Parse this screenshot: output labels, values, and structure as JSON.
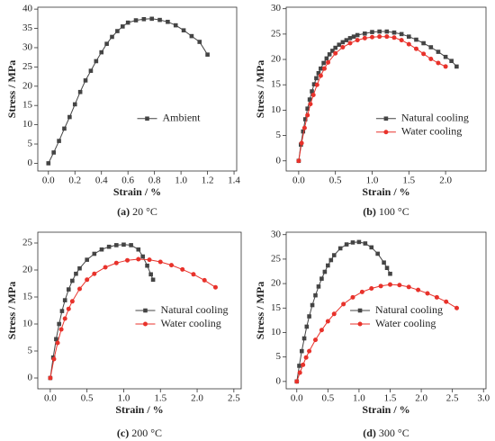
{
  "chart_data": [
    {
      "type": "line",
      "panel": "(a)",
      "subtitle": "20 °C",
      "xlabel": "Strain / %",
      "ylabel": "Stress / MPa",
      "xlim": [
        -0.08,
        1.42
      ],
      "xticks": [
        {
          "value": 0,
          "label": "0.0"
        },
        0.2,
        0.4,
        0.6,
        0.8,
        {
          "value": 1,
          "label": "1.0"
        },
        1.2,
        1.4
      ],
      "ylim": [
        -2,
        40.5
      ],
      "yticks": [
        0,
        5,
        10,
        15,
        20,
        25,
        30,
        35,
        40
      ],
      "legend": "center right",
      "series": [
        {
          "name": "Ambient",
          "color": "#444444",
          "marker": "square",
          "x": [
            0,
            0.04,
            0.08,
            0.12,
            0.16,
            0.2,
            0.24,
            0.28,
            0.32,
            0.36,
            0.4,
            0.44,
            0.48,
            0.52,
            0.56,
            0.6,
            0.66,
            0.72,
            0.78,
            0.84,
            0.9,
            0.96,
            1.02,
            1.08,
            1.14,
            1.2
          ],
          "values": [
            0,
            2.8,
            5.8,
            9,
            12,
            15.3,
            18.5,
            21.5,
            24,
            26.5,
            28.8,
            31,
            32.8,
            34.3,
            35.5,
            36.5,
            37.1,
            37.4,
            37.5,
            37.2,
            36.7,
            35.8,
            34.5,
            33,
            31.5,
            28.2
          ]
        }
      ]
    },
    {
      "type": "line",
      "panel": "(b)",
      "subtitle": "100 °C",
      "xlabel": "Strain / %",
      "ylabel": "Stress / MPa",
      "xlim": [
        -0.17,
        2.55
      ],
      "xticks": [
        {
          "value": 0,
          "label": "0.0"
        },
        0.5,
        {
          "value": 1,
          "label": "1.0"
        },
        1.5,
        {
          "value": 2,
          "label": "2.0"
        }
      ],
      "ylim": [
        -2,
        30.3
      ],
      "yticks": [
        0,
        5,
        10,
        15,
        20,
        25,
        30
      ],
      "legend": "center right",
      "series": [
        {
          "name": "Natural cooling",
          "color": "#444444",
          "marker": "square",
          "x": [
            0,
            0.03,
            0.06,
            0.09,
            0.12,
            0.15,
            0.18,
            0.21,
            0.24,
            0.27,
            0.3,
            0.34,
            0.38,
            0.42,
            0.46,
            0.5,
            0.55,
            0.6,
            0.65,
            0.7,
            0.75,
            0.8,
            0.9,
            1.0,
            1.1,
            1.2,
            1.3,
            1.4,
            1.5,
            1.6,
            1.7,
            1.8,
            1.9,
            2.0,
            2.08,
            2.15
          ],
          "values": [
            0,
            3.2,
            5.8,
            8.2,
            10.3,
            12.1,
            13.7,
            15.1,
            16.3,
            17.3,
            18.2,
            19.3,
            20.2,
            21,
            21.7,
            22.3,
            22.9,
            23.4,
            23.8,
            24.2,
            24.5,
            24.8,
            25.1,
            25.4,
            25.5,
            25.5,
            25.3,
            25,
            24.5,
            23.9,
            23.2,
            22.4,
            21.5,
            20.5,
            19.7,
            18.6
          ]
        },
        {
          "name": "Water cooling",
          "color": "#e8322b",
          "marker": "circle",
          "x": [
            0,
            0.04,
            0.08,
            0.12,
            0.16,
            0.2,
            0.25,
            0.3,
            0.35,
            0.4,
            0.5,
            0.6,
            0.7,
            0.8,
            0.9,
            1.0,
            1.1,
            1.2,
            1.3,
            1.4,
            1.5,
            1.6,
            1.7,
            1.8,
            1.9,
            2.0
          ],
          "values": [
            0,
            3.5,
            6.5,
            9,
            11.2,
            13,
            15,
            16.8,
            18.2,
            19.4,
            21.2,
            22.4,
            23.2,
            23.8,
            24.2,
            24.4,
            24.5,
            24.5,
            24.3,
            23.8,
            23,
            22.1,
            21.1,
            20.1,
            19.3,
            18.6
          ]
        }
      ]
    },
    {
      "type": "line",
      "panel": "(c)",
      "subtitle": "200 °C",
      "xlabel": "Strain / %",
      "ylabel": "Stress / MPa",
      "xlim": [
        -0.17,
        2.6
      ],
      "xticks": [
        {
          "value": 0,
          "label": "0.0"
        },
        0.5,
        {
          "value": 1,
          "label": "1.0"
        },
        1.5,
        {
          "value": 2,
          "label": "2.0"
        },
        2.5
      ],
      "ylim": [
        -2,
        27
      ],
      "yticks": [
        0,
        5,
        10,
        15,
        20,
        25
      ],
      "legend": "lower right",
      "series": [
        {
          "name": "Natural cooling",
          "color": "#444444",
          "marker": "square",
          "x": [
            0,
            0.04,
            0.08,
            0.12,
            0.16,
            0.2,
            0.25,
            0.3,
            0.35,
            0.4,
            0.5,
            0.6,
            0.7,
            0.8,
            0.9,
            1.0,
            1.1,
            1.2,
            1.26,
            1.32,
            1.37,
            1.4
          ],
          "values": [
            0,
            3.8,
            7.2,
            10,
            12.4,
            14.4,
            16.4,
            18,
            19.3,
            20.3,
            21.9,
            23,
            23.8,
            24.3,
            24.6,
            24.7,
            24.6,
            23.8,
            22.5,
            20.8,
            19.2,
            18.2
          ]
        },
        {
          "name": "Water cooling",
          "color": "#e8322b",
          "marker": "circle",
          "x": [
            0,
            0.05,
            0.1,
            0.15,
            0.2,
            0.25,
            0.3,
            0.4,
            0.5,
            0.6,
            0.75,
            0.9,
            1.05,
            1.2,
            1.35,
            1.5,
            1.65,
            1.8,
            1.95,
            2.1,
            2.25
          ],
          "values": [
            0,
            3.5,
            6.5,
            9,
            11,
            12.8,
            14.2,
            16.5,
            18.2,
            19.3,
            20.5,
            21.3,
            21.8,
            22,
            21.9,
            21.5,
            20.9,
            20.1,
            19.2,
            18.1,
            16.8
          ]
        }
      ]
    },
    {
      "type": "line",
      "panel": "(d)",
      "subtitle": "300 °C",
      "xlabel": "Strain / %",
      "ylabel": "Stress / MPa",
      "xlim": [
        -0.17,
        3.04
      ],
      "xticks": [
        {
          "value": 0,
          "label": "0.0"
        },
        0.5,
        {
          "value": 1,
          "label": "1.0"
        },
        1.5,
        {
          "value": 2,
          "label": "2.0"
        },
        2.5,
        {
          "value": 3,
          "label": "3.0"
        }
      ],
      "ylim": [
        -1.5,
        30.5
      ],
      "yticks": [
        0,
        5,
        10,
        15,
        20,
        25,
        30
      ],
      "legend": "lower right",
      "series": [
        {
          "name": "Natural cooling",
          "color": "#444444",
          "marker": "square",
          "x": [
            0,
            0.04,
            0.08,
            0.12,
            0.16,
            0.2,
            0.25,
            0.3,
            0.35,
            0.4,
            0.45,
            0.5,
            0.55,
            0.6,
            0.7,
            0.8,
            0.9,
            1.0,
            1.1,
            1.2,
            1.3,
            1.4,
            1.45,
            1.5
          ],
          "values": [
            0,
            3.2,
            6.2,
            8.8,
            11.2,
            13.3,
            15.6,
            17.6,
            19.4,
            21,
            22.4,
            23.7,
            24.8,
            25.8,
            27.2,
            28,
            28.4,
            28.5,
            28.2,
            27.4,
            26.1,
            24.3,
            23.2,
            22
          ]
        },
        {
          "name": "Water cooling",
          "color": "#e8322b",
          "marker": "circle",
          "x": [
            0,
            0.05,
            0.1,
            0.15,
            0.2,
            0.3,
            0.4,
            0.5,
            0.6,
            0.75,
            0.9,
            1.05,
            1.2,
            1.35,
            1.5,
            1.65,
            1.8,
            1.95,
            2.1,
            2.25,
            2.4,
            2.57
          ],
          "values": [
            0,
            1.8,
            3.4,
            4.9,
            6.2,
            8.5,
            10.5,
            12.3,
            13.8,
            15.8,
            17.2,
            18.3,
            19,
            19.5,
            19.8,
            19.7,
            19.3,
            18.7,
            18,
            17.2,
            16.3,
            15
          ]
        }
      ]
    }
  ]
}
